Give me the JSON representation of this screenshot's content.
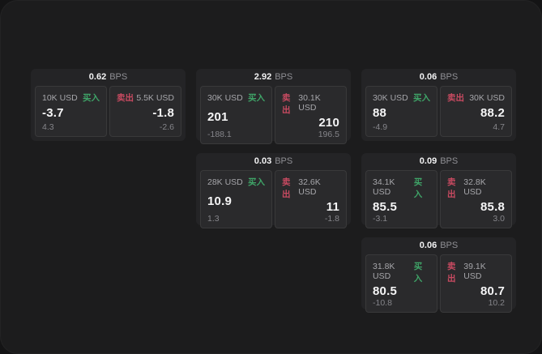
{
  "labels": {
    "buy": "买入",
    "sell": "卖出",
    "bps_unit": "BPS"
  },
  "colors": {
    "buy_accent": "#3fa468",
    "sell_accent": "#c84a61",
    "panel_background": "#1c1c1d",
    "card_background": "#242426",
    "tile_background": "#2a2a2c"
  },
  "cards": [
    {
      "bps": "0.62",
      "buy": {
        "notional": "10K USD",
        "price": "-3.7",
        "delta": "4.3"
      },
      "sell": {
        "notional": "5.5K USD",
        "price": "-1.8",
        "delta": "-2.6"
      }
    },
    {
      "bps": "2.92",
      "buy": {
        "notional": "30K USD",
        "price": "201",
        "delta": "-188.1"
      },
      "sell": {
        "notional": "30.1K USD",
        "price": "210",
        "delta": "196.5"
      }
    },
    {
      "bps": "0.06",
      "buy": {
        "notional": "30K USD",
        "price": "88",
        "delta": "-4.9"
      },
      "sell": {
        "notional": "30K USD",
        "price": "88.2",
        "delta": "4.7"
      }
    },
    {
      "bps": "0.03",
      "buy": {
        "notional": "28K USD",
        "price": "10.9",
        "delta": "1.3"
      },
      "sell": {
        "notional": "32.6K USD",
        "price": "11",
        "delta": "-1.8"
      }
    },
    {
      "bps": "0.09",
      "buy": {
        "notional": "34.1K USD",
        "price": "85.5",
        "delta": "-3.1"
      },
      "sell": {
        "notional": "32.8K USD",
        "price": "85.8",
        "delta": "3.0"
      }
    },
    {
      "bps": "0.06",
      "buy": {
        "notional": "31.8K USD",
        "price": "80.5",
        "delta": "-10.8"
      },
      "sell": {
        "notional": "39.1K USD",
        "price": "80.7",
        "delta": "10.2"
      }
    }
  ]
}
